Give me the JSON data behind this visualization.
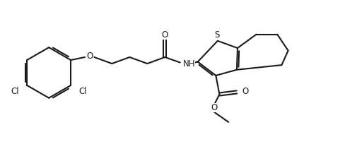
{
  "background_color": "#ffffff",
  "line_color": "#1a1a1a",
  "line_width": 1.5,
  "font_size": 8.5,
  "figsize": [
    4.89,
    2.11
  ],
  "dpi": 100,
  "xlim": [
    0,
    9.5
  ],
  "ylim": [
    0,
    4.1
  ]
}
